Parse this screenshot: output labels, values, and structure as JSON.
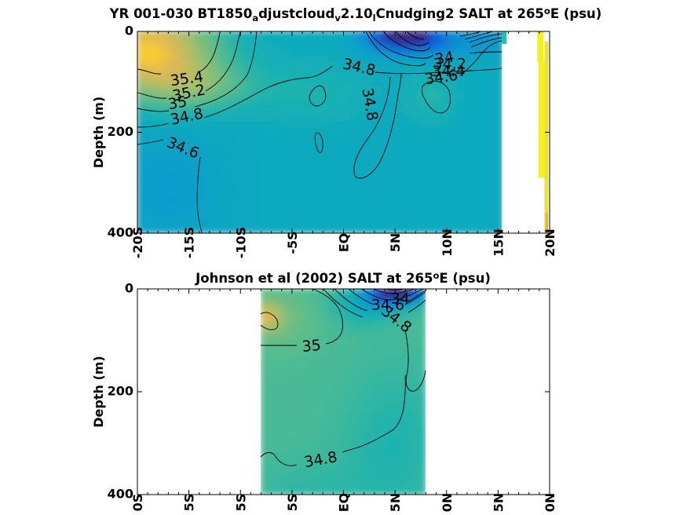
{
  "chart_data": [
    {
      "type": "heatmap",
      "title": {
        "parts": [
          {
            "text": "YR 001-030 BT1850",
            "shift": "none"
          },
          {
            "text": "a",
            "shift": "sub"
          },
          {
            "text": "djustcloud",
            "shift": "none"
          },
          {
            "text": "v",
            "shift": "sub"
          },
          {
            "text": "2.10",
            "shift": "none"
          },
          {
            "text": "l",
            "shift": "sub"
          },
          {
            "text": "Cnudging2 SALT at 265",
            "shift": "none"
          },
          {
            "text": "o",
            "shift": "super"
          },
          {
            "text": "E (psu)",
            "shift": "none"
          }
        ]
      },
      "xlabel": "",
      "ylabel": "Depth (m)",
      "xlim": [
        -20,
        20
      ],
      "ylim": [
        400,
        0
      ],
      "y_reversed": true,
      "x_ticks": [
        -20,
        -15,
        -10,
        -5,
        0,
        5,
        10,
        15,
        20
      ],
      "x_tick_labels": [
        "-20S",
        "-15S",
        "-10S",
        "-5S",
        "EQ",
        "5N",
        "10N",
        "15N",
        "20N"
      ],
      "y_ticks": [
        0,
        200,
        400
      ],
      "y_tick_labels": [
        "0",
        "200",
        "400"
      ],
      "data_extent_lat": [
        -20,
        15.5
      ],
      "colormap": "parula",
      "color_range_psu": [
        34.0,
        35.6
      ],
      "grid": false,
      "salinity_field": {
        "background": 34.72,
        "blobs": [
          {
            "lat": -19,
            "depth": 40,
            "slat": 6.5,
            "sdep": 85,
            "amp": 0.75
          },
          {
            "lat": -14,
            "depth": 110,
            "slat": 5,
            "sdep": 45,
            "amp": 0.25
          },
          {
            "lat": -17,
            "depth": 310,
            "slat": 5,
            "sdep": 110,
            "amp": -0.12
          },
          {
            "lat": 4,
            "depth": 5,
            "slat": 2.6,
            "sdep": 35,
            "amp": -0.35
          },
          {
            "lat": 6.5,
            "depth": 10,
            "slat": 2.8,
            "sdep": 28,
            "amp": -0.6
          },
          {
            "lat": 9,
            "depth": 20,
            "slat": 3.5,
            "sdep": 30,
            "amp": -0.25
          },
          {
            "lat": 14,
            "depth": 10,
            "slat": 2.2,
            "sdep": 30,
            "amp": -0.15
          },
          {
            "lat": 8.5,
            "depth": 130,
            "slat": 2.5,
            "sdep": 50,
            "amp": 0.12
          },
          {
            "lat": -3.5,
            "depth": 120,
            "slat": 6,
            "sdep": 60,
            "amp": 0.1
          }
        ]
      },
      "contour_labels": [
        {
          "text": "35.4",
          "lat": -15.2,
          "depth": 95,
          "angle": -8
        },
        {
          "text": "35.2",
          "lat": -15.0,
          "depth": 123,
          "angle": -12
        },
        {
          "text": "35",
          "lat": -16.1,
          "depth": 143,
          "angle": -10
        },
        {
          "text": "34.8",
          "lat": -15.2,
          "depth": 170,
          "angle": -12
        },
        {
          "text": "34.6",
          "lat": -15.6,
          "depth": 232,
          "angle": 22
        },
        {
          "text": "34.8",
          "lat": 1.5,
          "depth": 72,
          "angle": 13
        },
        {
          "text": "34.8",
          "lat": 2.5,
          "depth": 145,
          "angle": 80
        },
        {
          "text": "34",
          "lat": 9.8,
          "depth": 54,
          "angle": -10
        },
        {
          "text": "34.2",
          "lat": 10.3,
          "depth": 65,
          "angle": 0
        },
        {
          "text": "34.4",
          "lat": 10.2,
          "depth": 80,
          "angle": 0
        },
        {
          "text": "34.6",
          "lat": 9.5,
          "depth": 92,
          "angle": -8
        }
      ],
      "side_bars": [
        {
          "lat_from": 18.8,
          "lat_to": 19.4,
          "depth_from": 0,
          "depth_to": 60,
          "color": "#f0f020"
        },
        {
          "lat_from": 18.9,
          "lat_to": 19.5,
          "depth_from": 60,
          "depth_to": 290,
          "color": "#f5f020"
        },
        {
          "lat_from": 19.5,
          "lat_to": 19.85,
          "depth_from": 20,
          "depth_to": 400,
          "color": "#f2e025"
        },
        {
          "lat_from": 19.6,
          "lat_to": 19.85,
          "depth_from": 360,
          "depth_to": 400,
          "color": "#f2b035"
        }
      ]
    },
    {
      "type": "heatmap",
      "title": {
        "parts": [
          {
            "text": "Johnson et al (2002) SALT at 265",
            "shift": "none"
          },
          {
            "text": "o",
            "shift": "super"
          },
          {
            "text": "E (psu)",
            "shift": "none"
          }
        ]
      },
      "xlabel": "",
      "ylabel": "Depth (m)",
      "xlim": [
        -20,
        20
      ],
      "ylim": [
        400,
        0
      ],
      "y_reversed": true,
      "x_ticks": [
        -20,
        -15,
        -10,
        -5,
        0,
        5,
        10,
        15,
        20
      ],
      "x_tick_labels": [
        "0S",
        "5S",
        "5S",
        "5S",
        "EQ",
        "5N",
        "0N",
        "5N",
        "0N"
      ],
      "y_ticks": [
        0,
        200,
        400
      ],
      "y_tick_labels": [
        "0",
        "200",
        "400"
      ],
      "data_extent_lat": [
        -8,
        8
      ],
      "colormap": "parula",
      "color_range_psu": [
        34.0,
        35.6
      ],
      "grid": false,
      "salinity_field": {
        "background": 34.95,
        "blobs": [
          {
            "lat": -7.6,
            "depth": 55,
            "slat": 1.6,
            "sdep": 28,
            "amp": 0.35
          },
          {
            "lat": -6,
            "depth": 60,
            "slat": 3.5,
            "sdep": 60,
            "amp": 0.1
          },
          {
            "lat": 4.5,
            "depth": 0,
            "slat": 2.2,
            "sdep": 30,
            "amp": -0.95
          },
          {
            "lat": 6.5,
            "depth": 5,
            "slat": 2,
            "sdep": 22,
            "amp": -0.5
          },
          {
            "lat": 2,
            "depth": 30,
            "slat": 3,
            "sdep": 40,
            "amp": -0.2
          },
          {
            "lat": 5,
            "depth": 300,
            "slat": 5,
            "sdep": 150,
            "amp": -0.12
          },
          {
            "lat": -3,
            "depth": 420,
            "slat": 6,
            "sdep": 90,
            "amp": -0.08
          }
        ]
      },
      "contour_labels": [
        {
          "text": "34",
          "lat": 5.5,
          "depth": 20,
          "angle": 0
        },
        {
          "text": "34.6",
          "lat": 4.3,
          "depth": 32,
          "angle": 0
        },
        {
          "text": "34.8",
          "lat": 5.1,
          "depth": 60,
          "angle": 38
        },
        {
          "text": "35",
          "lat": -3.1,
          "depth": 112,
          "angle": -5
        },
        {
          "text": "34.8",
          "lat": -2.2,
          "depth": 333,
          "angle": -10
        }
      ],
      "side_bars": []
    }
  ]
}
